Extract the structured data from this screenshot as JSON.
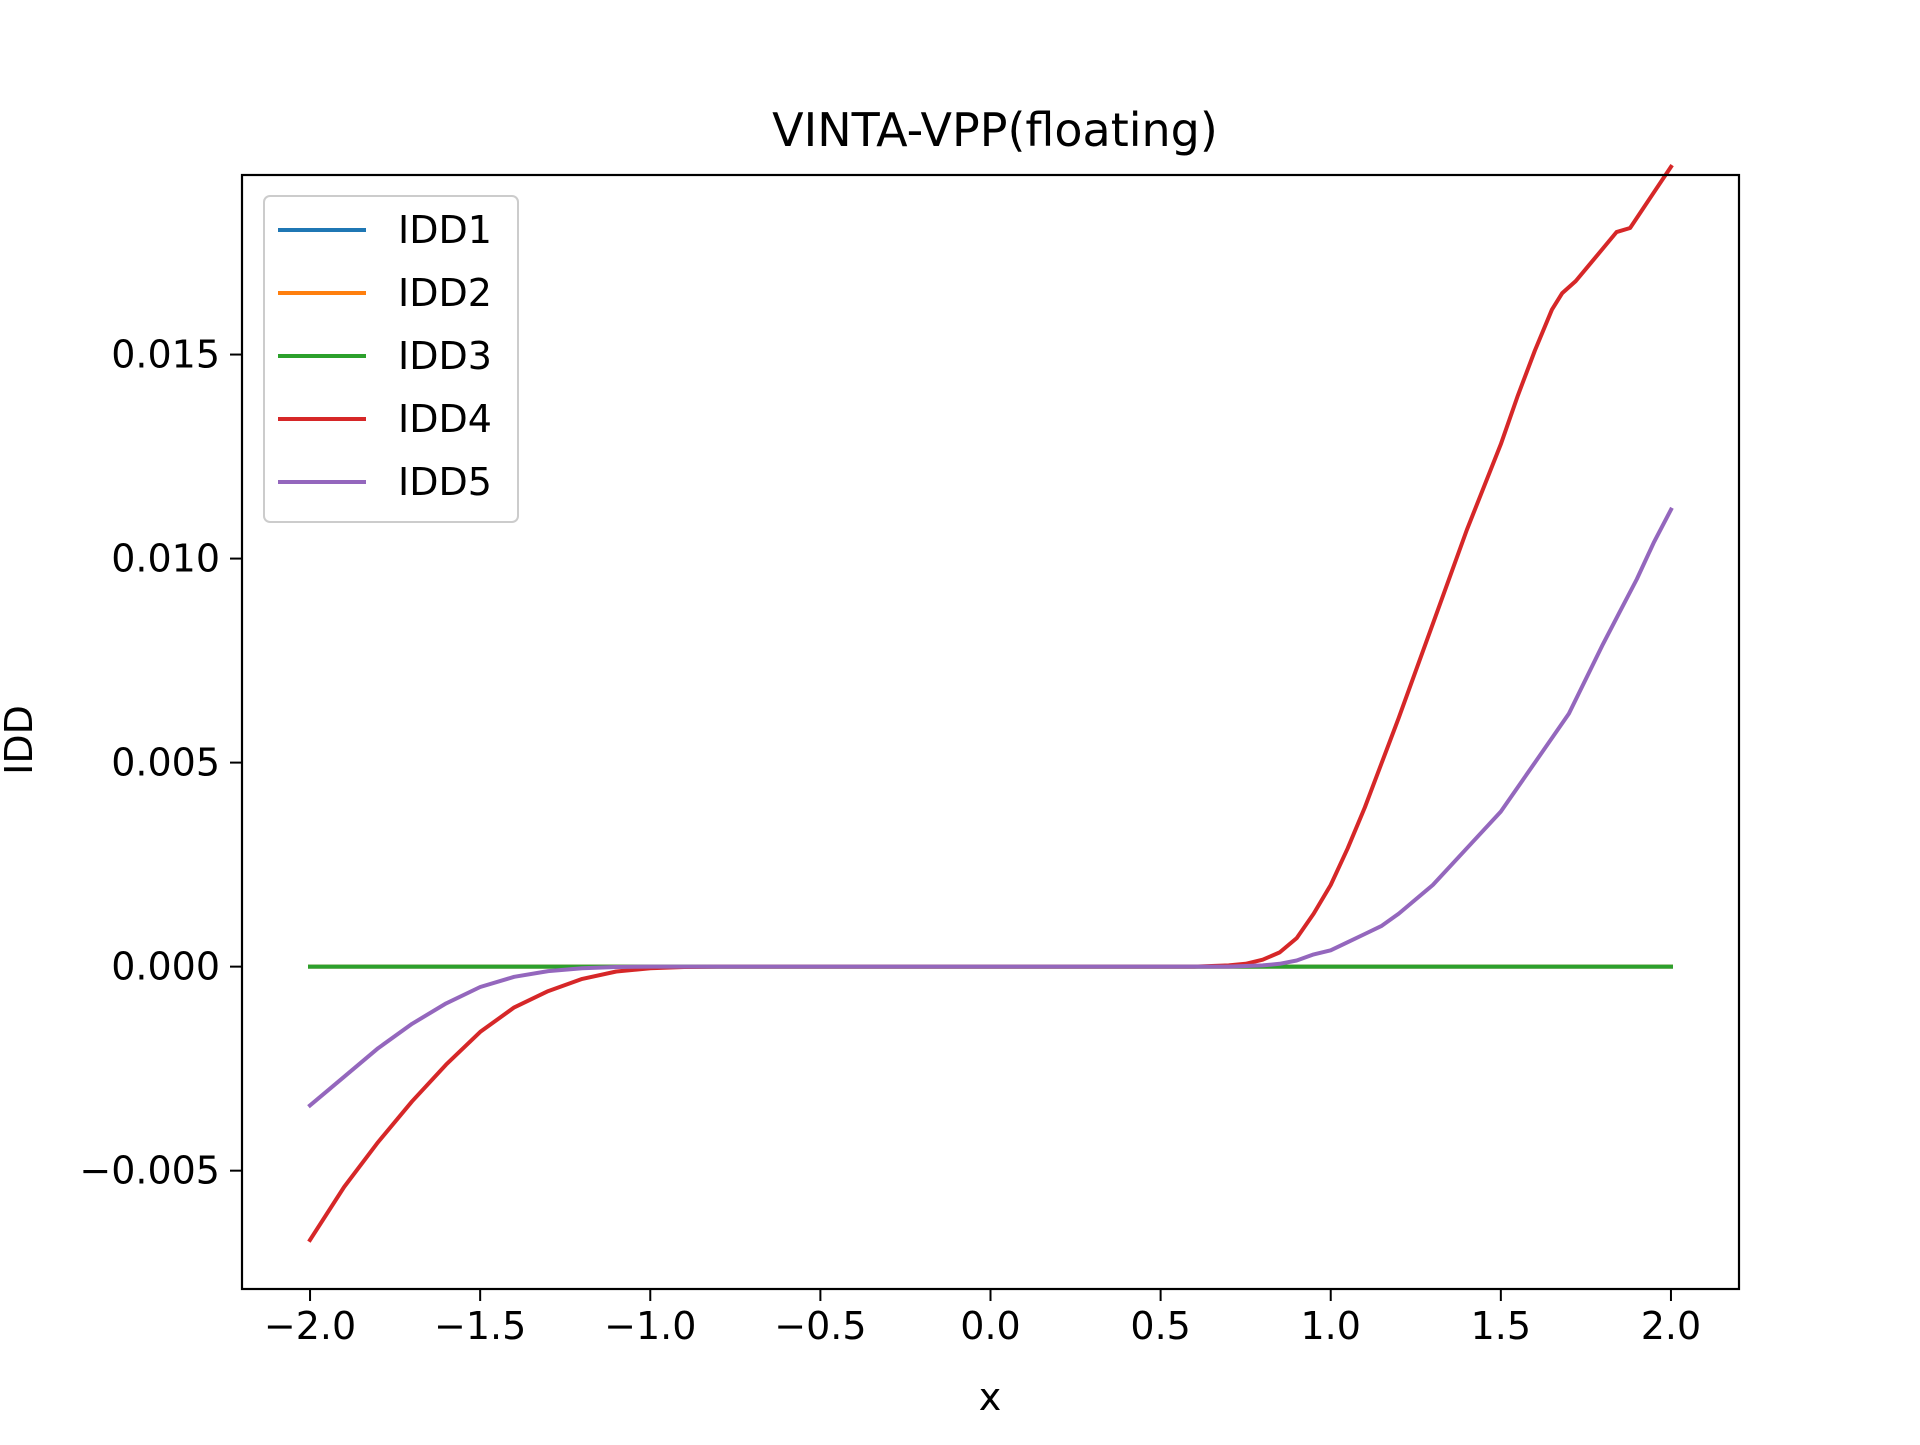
{
  "chart_data": {
    "type": "line",
    "title": "VINTA-VPP(floating)",
    "xlabel": "x",
    "ylabel": "IDD",
    "xlim": [
      -2.2,
      2.2
    ],
    "ylim": [
      -0.0079,
      0.0194
    ],
    "xticks": [
      -2.0,
      -1.5,
      -1.0,
      -0.5,
      0.0,
      0.5,
      1.0,
      1.5,
      2.0
    ],
    "xtick_labels": [
      "−2.0",
      "−1.5",
      "−1.0",
      "−0.5",
      "0.0",
      "0.5",
      "1.0",
      "1.5",
      "2.0"
    ],
    "yticks": [
      -0.005,
      0.0,
      0.005,
      0.01,
      0.015
    ],
    "ytick_labels": [
      "−0.005",
      "0.000",
      "0.005",
      "0.010",
      "0.015"
    ],
    "grid": false,
    "legend_position": "upper-left",
    "series": [
      {
        "name": "IDD1",
        "color": "#1f77b4",
        "x": [
          -2.0,
          2.0
        ],
        "y": [
          0.0,
          0.0
        ]
      },
      {
        "name": "IDD2",
        "color": "#ff7f0e",
        "x": [
          -2.0,
          2.0
        ],
        "y": [
          0.0,
          0.0
        ]
      },
      {
        "name": "IDD3",
        "color": "#2ca02c",
        "x": [
          -2.0,
          2.0
        ],
        "y": [
          0.0,
          0.0
        ]
      },
      {
        "name": "IDD4",
        "color": "#d62728",
        "x": [
          -2.0,
          -1.9,
          -1.8,
          -1.7,
          -1.6,
          -1.5,
          -1.4,
          -1.3,
          -1.2,
          -1.1,
          -1.0,
          -0.9,
          -0.8,
          -0.7,
          0.0,
          0.6,
          0.7,
          0.75,
          0.8,
          0.85,
          0.9,
          0.95,
          1.0,
          1.05,
          1.1,
          1.15,
          1.2,
          1.3,
          1.4,
          1.5,
          1.55,
          1.6,
          1.65,
          1.68,
          1.72,
          1.76,
          1.8,
          1.84,
          1.88,
          1.92,
          2.0
        ],
        "y": [
          -0.0067,
          -0.0054,
          -0.0043,
          -0.0033,
          -0.0024,
          -0.0016,
          -0.001,
          -0.0006,
          -0.0003,
          -0.00012,
          -4e-05,
          -1e-05,
          0.0,
          0.0,
          0.0,
          0.0,
          3e-05,
          7e-05,
          0.00017,
          0.00035,
          0.0007,
          0.0013,
          0.002,
          0.0029,
          0.0039,
          0.005,
          0.0061,
          0.0084,
          0.0107,
          0.0128,
          0.014,
          0.0151,
          0.0161,
          0.0165,
          0.0168,
          0.0172,
          0.0176,
          0.018,
          0.0181,
          0.0186,
          0.0196
        ]
      },
      {
        "name": "IDD5",
        "color": "#9467bd",
        "x": [
          -2.0,
          -1.9,
          -1.8,
          -1.7,
          -1.6,
          -1.5,
          -1.4,
          -1.3,
          -1.2,
          -1.1,
          -1.0,
          -0.9,
          -0.8,
          0.0,
          0.7,
          0.8,
          0.85,
          0.9,
          0.95,
          1.0,
          1.05,
          1.1,
          1.15,
          1.2,
          1.3,
          1.4,
          1.5,
          1.6,
          1.7,
          1.8,
          1.85,
          1.9,
          1.95,
          2.0
        ],
        "y": [
          -0.0034,
          -0.0027,
          -0.002,
          -0.0014,
          -0.0009,
          -0.0005,
          -0.00025,
          -0.00011,
          -4e-05,
          -1e-05,
          0.0,
          0.0,
          0.0,
          0.0,
          0.0,
          3e-05,
          7e-05,
          0.00015,
          0.0003,
          0.0004,
          0.0006,
          0.0008,
          0.001,
          0.0013,
          0.002,
          0.0029,
          0.0038,
          0.005,
          0.0062,
          0.0079,
          0.0087,
          0.0095,
          0.0104,
          0.0112
        ]
      }
    ]
  }
}
